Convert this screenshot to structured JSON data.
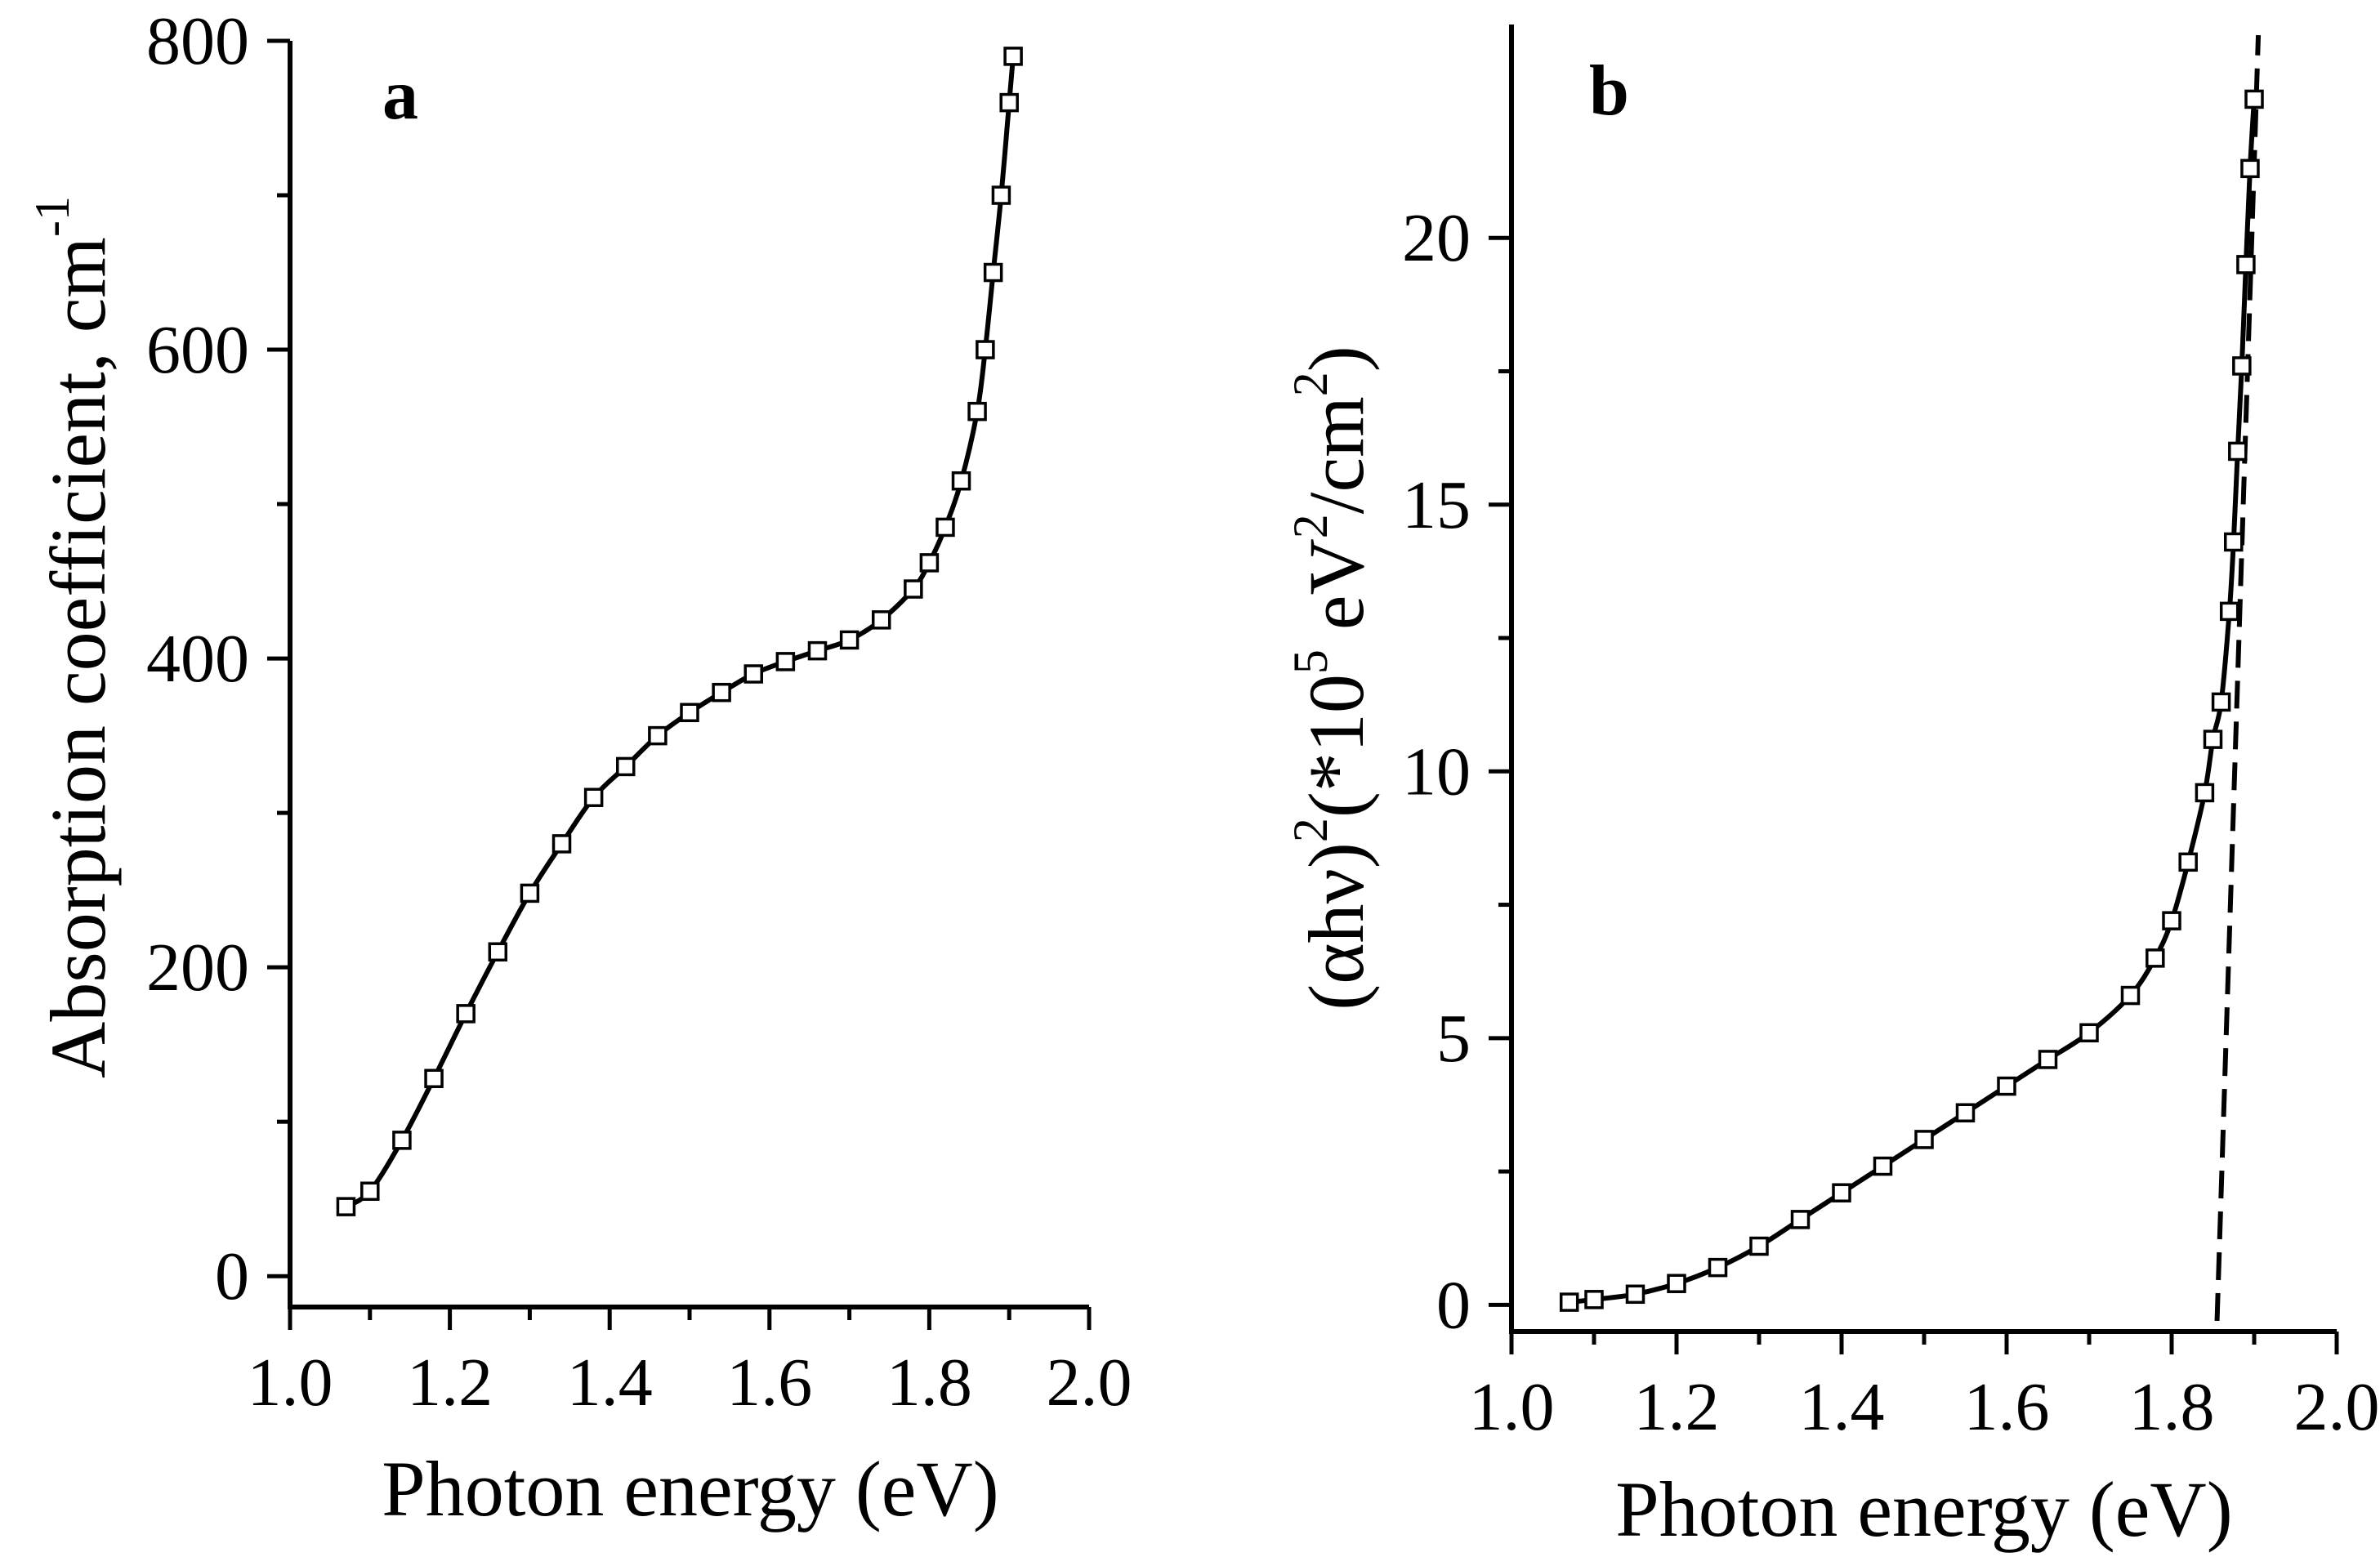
{
  "chart_data": [
    {
      "id": "a",
      "type": "scatter",
      "panel_label": "a",
      "xlabel": "Photon energy (eV)",
      "ylabel": "Absorption coefficient, cm",
      "ylabel_superscript": "-1",
      "xlim": [
        1.0,
        2.0
      ],
      "ylim": [
        -20,
        800
      ],
      "x_ticks": [
        "1.0",
        "1.2",
        "1.4",
        "1.6",
        "1.8",
        "2.0"
      ],
      "x_tick_values": [
        1.0,
        1.2,
        1.4,
        1.6,
        1.8,
        2.0
      ],
      "y_ticks": [
        "0",
        "200",
        "400",
        "600",
        "800"
      ],
      "y_tick_values": [
        0,
        200,
        400,
        600,
        800
      ],
      "series": [
        {
          "name": "absorption coefficient",
          "marker": "open-square",
          "x": [
            1.07,
            1.1,
            1.14,
            1.18,
            1.22,
            1.26,
            1.3,
            1.34,
            1.38,
            1.42,
            1.46,
            1.5,
            1.54,
            1.58,
            1.62,
            1.66,
            1.7,
            1.74,
            1.78,
            1.8,
            1.82,
            1.84,
            1.86,
            1.87,
            1.88,
            1.89,
            1.9,
            1.905
          ],
          "y": [
            45,
            55,
            88,
            128,
            170,
            210,
            248,
            280,
            310,
            330,
            350,
            365,
            378,
            390,
            398,
            405,
            412,
            425,
            445,
            462,
            485,
            515,
            560,
            600,
            650,
            700,
            760,
            790
          ]
        }
      ]
    },
    {
      "id": "b",
      "type": "scatter",
      "panel_label": "b",
      "xlabel": "Photon energy (eV)",
      "ylabel_parts": [
        "(αhν)",
        "2",
        "(*10",
        "5",
        " eV",
        "2",
        "/cm",
        "2",
        ")"
      ],
      "xlim": [
        1.0,
        2.0
      ],
      "ylim": [
        -0.5,
        24
      ],
      "x_ticks": [
        "1.0",
        "1.2",
        "1.4",
        "1.6",
        "1.8",
        "2.0"
      ],
      "x_tick_values": [
        1.0,
        1.2,
        1.4,
        1.6,
        1.8,
        2.0
      ],
      "y_ticks": [
        "0",
        "5",
        "10",
        "15",
        "20"
      ],
      "y_tick_values": [
        0,
        5,
        10,
        15,
        20
      ],
      "series": [
        {
          "name": "(αhν)^2",
          "marker": "open-square",
          "x": [
            1.07,
            1.1,
            1.15,
            1.2,
            1.25,
            1.3,
            1.35,
            1.4,
            1.45,
            1.5,
            1.55,
            1.6,
            1.65,
            1.7,
            1.75,
            1.78,
            1.8,
            1.82,
            1.84,
            1.85,
            1.86,
            1.87,
            1.875,
            1.88,
            1.885,
            1.89,
            1.895,
            1.9
          ],
          "y": [
            0.05,
            0.1,
            0.2,
            0.4,
            0.7,
            1.1,
            1.6,
            2.1,
            2.6,
            3.1,
            3.6,
            4.1,
            4.6,
            5.1,
            5.8,
            6.5,
            7.2,
            8.3,
            9.6,
            10.6,
            11.3,
            13.0,
            14.3,
            16.0,
            17.6,
            19.5,
            21.3,
            22.6
          ]
        },
        {
          "name": "linear extrapolation",
          "style": "dashed",
          "x": [
            1.855,
            1.905
          ],
          "y": [
            -0.3,
            23.8
          ]
        }
      ]
    }
  ]
}
